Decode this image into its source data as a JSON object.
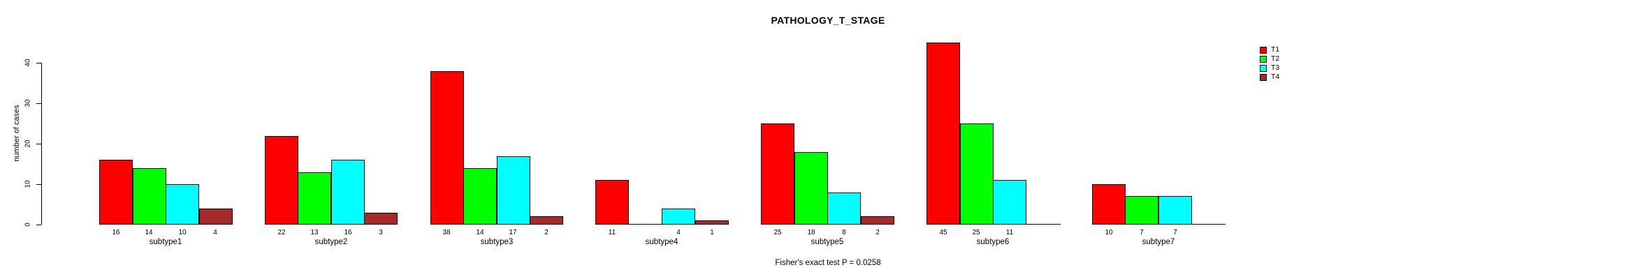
{
  "title": "PATHOLOGY_T_STAGE",
  "footer": "Fisher's exact test P = 0.0258",
  "chart_data": {
    "type": "bar",
    "title": "PATHOLOGY_T_STAGE",
    "xlabel": "",
    "ylabel": "number of cases",
    "annotation": "Fisher's exact test P = 0.0258",
    "categories": [
      "subtype1",
      "subtype2",
      "subtype3",
      "subtype4",
      "subtype5",
      "subtype6",
      "subtype7"
    ],
    "series": [
      {
        "name": "T1",
        "color": "#ff0000",
        "values": [
          16,
          22,
          38,
          11,
          25,
          45,
          10
        ]
      },
      {
        "name": "T2",
        "color": "#00ff00",
        "values": [
          14,
          13,
          14,
          0,
          18,
          25,
          7
        ]
      },
      {
        "name": "T3",
        "color": "#00ffff",
        "values": [
          10,
          16,
          17,
          4,
          8,
          11,
          7
        ]
      },
      {
        "name": "T4",
        "color": "#a52a2a",
        "values": [
          4,
          3,
          2,
          1,
          2,
          0,
          0
        ]
      }
    ],
    "bar_value_labels": true,
    "zero_values_unlabeled": true,
    "yticks": [
      0,
      10,
      20,
      30,
      40
    ],
    "ylim": [
      0,
      45
    ],
    "grid": false,
    "legend_position": "right",
    "legend_entries": [
      "T1",
      "T2",
      "T3",
      "T4"
    ]
  }
}
